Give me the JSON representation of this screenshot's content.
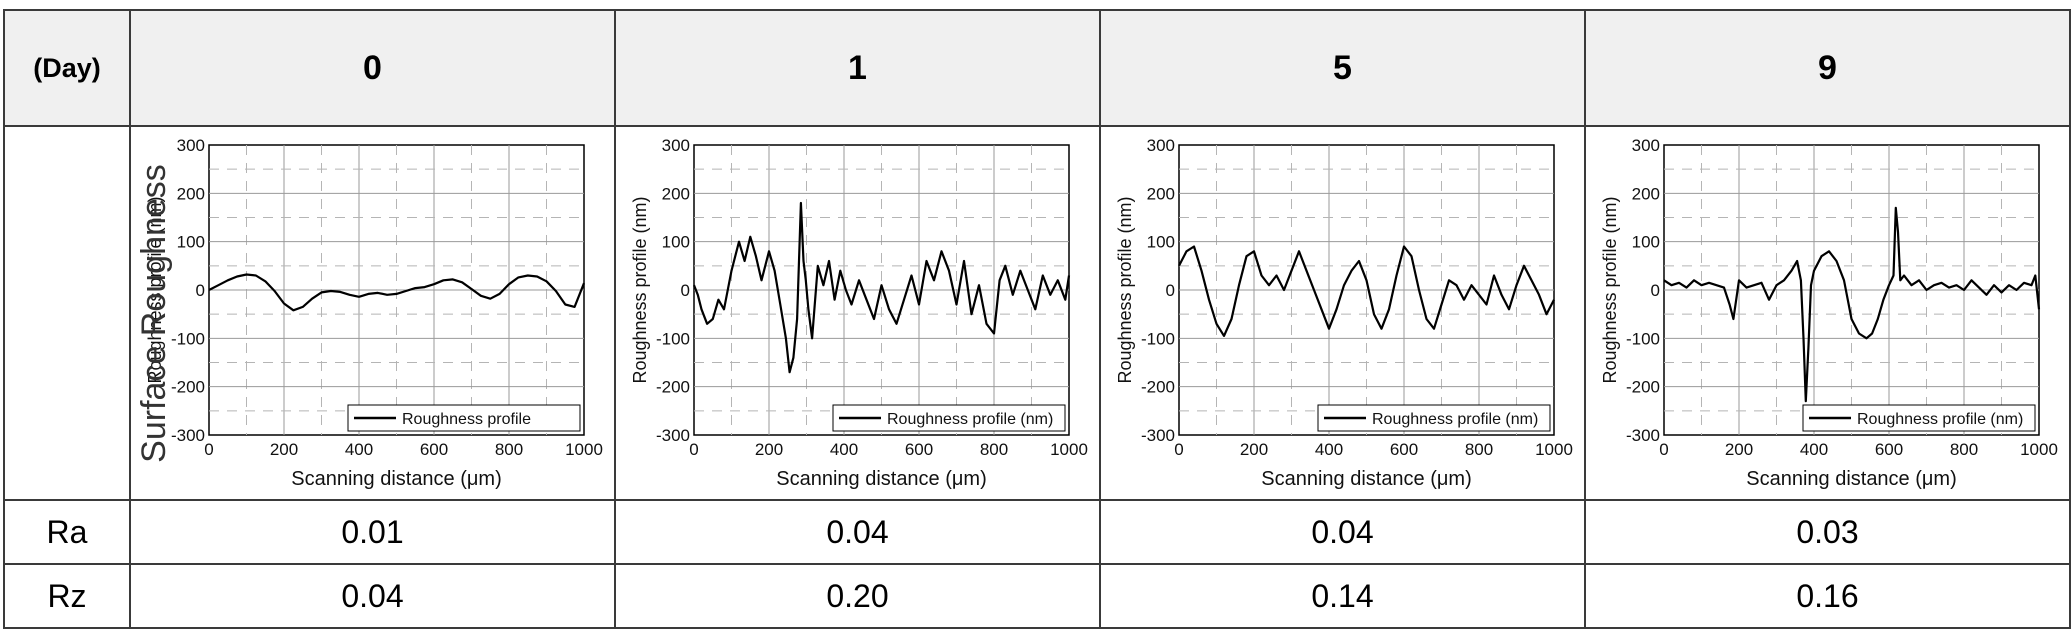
{
  "table": {
    "corner_label": "(Day)",
    "row_labels": {
      "roughness": "Surface Roughness",
      "ra": "Ra",
      "rz": "Rz"
    },
    "days": [
      "0",
      "1",
      "5",
      "9"
    ],
    "ra": [
      "0.01",
      "0.04",
      "0.04",
      "0.03"
    ],
    "rz": [
      "0.04",
      "0.20",
      "0.14",
      "0.16"
    ]
  },
  "chart_data": [
    {
      "type": "line",
      "xlabel": "Scanning distance (μm)",
      "ylabel": "Roughness profile (nm)",
      "legend": "Roughness profile",
      "legend_position": "bottom-right",
      "xlim": [
        0,
        1000
      ],
      "ylim": [
        -300,
        300
      ],
      "xticks": [
        "0",
        "200",
        "400",
        "600",
        "800",
        "1000"
      ],
      "yticks": [
        "300",
        "200",
        "100",
        "0",
        "-100",
        "-200",
        "-300"
      ],
      "grid": true,
      "x": [
        0,
        25,
        50,
        75,
        100,
        125,
        150,
        175,
        200,
        225,
        250,
        275,
        300,
        325,
        350,
        375,
        400,
        425,
        450,
        475,
        500,
        525,
        550,
        575,
        600,
        625,
        650,
        675,
        700,
        725,
        750,
        775,
        800,
        825,
        850,
        875,
        900,
        925,
        950,
        975,
        1000
      ],
      "y": [
        0,
        10,
        20,
        28,
        32,
        30,
        18,
        -2,
        -28,
        -42,
        -35,
        -18,
        -5,
        -2,
        -4,
        -10,
        -14,
        -8,
        -6,
        -10,
        -8,
        -2,
        4,
        6,
        12,
        20,
        22,
        16,
        2,
        -12,
        -18,
        -8,
        12,
        26,
        30,
        28,
        18,
        -2,
        -30,
        -35,
        14
      ]
    },
    {
      "type": "line",
      "xlabel": "Scanning distance (μm)",
      "ylabel": "Roughness profile (nm)",
      "legend": "Roughness profile (nm)",
      "legend_position": "bottom-right",
      "xlim": [
        0,
        1000
      ],
      "ylim": [
        -300,
        300
      ],
      "xticks": [
        "0",
        "200",
        "400",
        "600",
        "800",
        "1000"
      ],
      "yticks": [
        "300",
        "200",
        "100",
        "0",
        "-100",
        "-200",
        "-300"
      ],
      "grid": true,
      "x": [
        0,
        10,
        20,
        35,
        50,
        65,
        80,
        100,
        120,
        135,
        150,
        165,
        180,
        200,
        215,
        230,
        245,
        255,
        265,
        275,
        285,
        292,
        298,
        305,
        315,
        330,
        345,
        360,
        375,
        390,
        405,
        420,
        440,
        460,
        480,
        500,
        520,
        540,
        560,
        580,
        600,
        620,
        640,
        660,
        680,
        700,
        720,
        740,
        760,
        780,
        800,
        815,
        830,
        850,
        870,
        890,
        910,
        930,
        950,
        970,
        990,
        1000
      ],
      "y": [
        10,
        -10,
        -40,
        -70,
        -60,
        -20,
        -40,
        40,
        100,
        60,
        110,
        70,
        20,
        80,
        40,
        -30,
        -100,
        -170,
        -140,
        -60,
        180,
        60,
        20,
        -40,
        -100,
        50,
        10,
        60,
        -20,
        40,
        0,
        -30,
        20,
        -20,
        -60,
        10,
        -40,
        -70,
        -20,
        30,
        -30,
        60,
        20,
        80,
        40,
        -30,
        60,
        -50,
        10,
        -70,
        -90,
        20,
        50,
        -10,
        40,
        0,
        -40,
        30,
        -10,
        20,
        -20,
        30
      ]
    },
    {
      "type": "line",
      "xlabel": "Scanning distance (μm)",
      "ylabel": "Roughness profile (nm)",
      "legend": "Roughness profile (nm)",
      "legend_position": "bottom-right",
      "xlim": [
        0,
        1000
      ],
      "ylim": [
        -300,
        300
      ],
      "xticks": [
        "0",
        "200",
        "400",
        "600",
        "800",
        "1000"
      ],
      "yticks": [
        "300",
        "200",
        "100",
        "0",
        "-100",
        "-200",
        "-300"
      ],
      "grid": true,
      "x": [
        0,
        20,
        40,
        60,
        80,
        100,
        120,
        140,
        160,
        180,
        200,
        220,
        240,
        260,
        280,
        300,
        320,
        340,
        360,
        380,
        400,
        420,
        440,
        460,
        480,
        500,
        520,
        540,
        560,
        580,
        600,
        620,
        640,
        660,
        680,
        700,
        720,
        740,
        760,
        780,
        800,
        820,
        840,
        860,
        880,
        900,
        920,
        940,
        960,
        980,
        1000
      ],
      "y": [
        50,
        80,
        90,
        40,
        -20,
        -70,
        -95,
        -60,
        10,
        70,
        80,
        30,
        10,
        30,
        0,
        40,
        80,
        40,
        0,
        -40,
        -80,
        -40,
        10,
        40,
        60,
        20,
        -50,
        -80,
        -40,
        30,
        90,
        70,
        0,
        -60,
        -80,
        -30,
        20,
        10,
        -20,
        10,
        -10,
        -30,
        30,
        -10,
        -40,
        10,
        50,
        20,
        -10,
        -50,
        -20
      ]
    },
    {
      "type": "line",
      "xlabel": "Scanning distance (μm)",
      "ylabel": "Roughness profile (nm)",
      "legend": "Roughness profile (nm)",
      "legend_position": "bottom-right",
      "xlim": [
        0,
        1000
      ],
      "ylim": [
        -300,
        300
      ],
      "xticks": [
        "0",
        "200",
        "400",
        "600",
        "800",
        "1000"
      ],
      "yticks": [
        "300",
        "200",
        "100",
        "0",
        "-100",
        "-200",
        "-300"
      ],
      "grid": true,
      "x": [
        0,
        20,
        40,
        60,
        80,
        100,
        120,
        140,
        160,
        175,
        185,
        200,
        220,
        240,
        260,
        280,
        300,
        320,
        340,
        355,
        365,
        372,
        378,
        385,
        392,
        400,
        420,
        440,
        460,
        480,
        500,
        520,
        540,
        555,
        570,
        585,
        600,
        612,
        618,
        624,
        630,
        640,
        660,
        680,
        700,
        720,
        740,
        760,
        780,
        800,
        820,
        840,
        860,
        880,
        900,
        920,
        940,
        960,
        980,
        990,
        1000
      ],
      "y": [
        20,
        10,
        15,
        5,
        20,
        10,
        15,
        10,
        5,
        -30,
        -60,
        20,
        5,
        10,
        15,
        -20,
        10,
        20,
        40,
        60,
        20,
        -100,
        -230,
        -120,
        10,
        40,
        70,
        80,
        60,
        20,
        -60,
        -90,
        -100,
        -90,
        -60,
        -20,
        10,
        30,
        170,
        120,
        20,
        30,
        10,
        20,
        0,
        10,
        15,
        5,
        10,
        0,
        20,
        5,
        -10,
        10,
        -5,
        10,
        0,
        15,
        10,
        30,
        -40
      ]
    }
  ]
}
